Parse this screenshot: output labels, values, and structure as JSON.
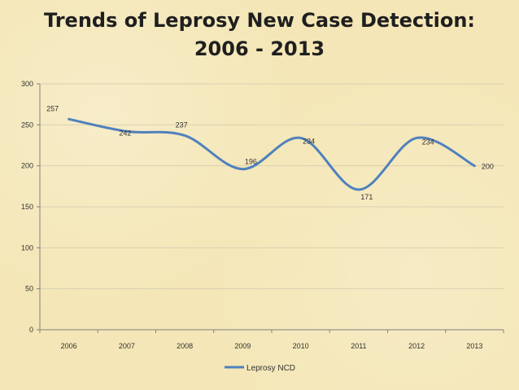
{
  "title": {
    "line1": "Trends of Leprosy New Case Detection:",
    "line2": "2006 - 2013"
  },
  "colors": {
    "series": "#4f81bd",
    "axis": "#808080",
    "grid": "#d9d0b0"
  },
  "chart_data": {
    "type": "line",
    "title": "Trends of Leprosy New Case Detection: 2006 - 2013",
    "categories": [
      "2006",
      "2007",
      "2008",
      "2009",
      "2010",
      "2011",
      "2012",
      "2013"
    ],
    "series": [
      {
        "name": "Leprosy NCD",
        "values": [
          257,
          242,
          237,
          196,
          234,
          171,
          234,
          200
        ]
      }
    ],
    "ylim": [
      0,
      300
    ],
    "yticks": [
      0,
      50,
      100,
      150,
      200,
      250,
      300
    ],
    "xlabel": "",
    "ylabel": "",
    "grid": true,
    "smooth": true,
    "legend": "bottom-center"
  }
}
